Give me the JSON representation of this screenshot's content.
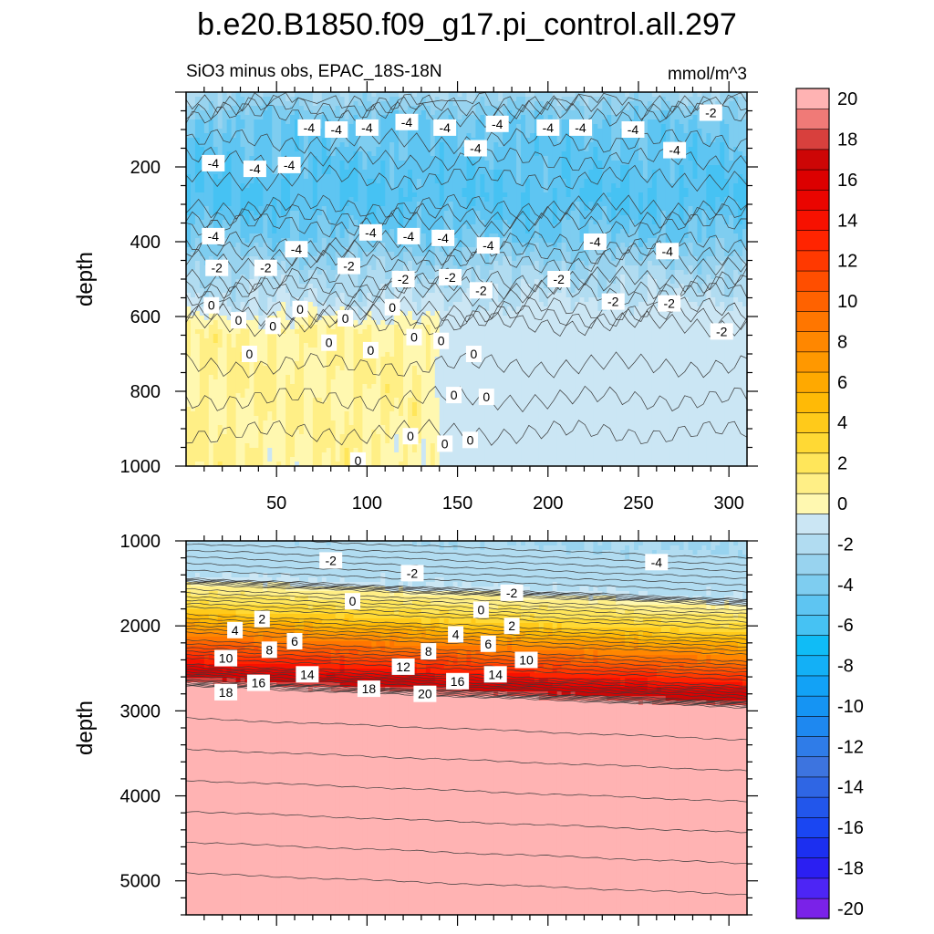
{
  "title": "b.e20.B1850.f09_g17.pi_control.all.297",
  "subtitle_left": "SiO3 minus obs, EPAC_18S-18N",
  "subtitle_right": "mmol/m^3",
  "chart_data": [
    {
      "type": "heatmap",
      "panel": "upper",
      "ylabel": "depth",
      "xlabel": "",
      "xlim": [
        0,
        310
      ],
      "ylim": [
        0,
        1000
      ],
      "y_reversed": true,
      "x_ticks": [
        50,
        100,
        150,
        200,
        250,
        300
      ],
      "y_ticks": [
        200,
        400,
        600,
        800,
        1000
      ],
      "bands": [
        {
          "depth": 0,
          "value": -2
        },
        {
          "depth": 80,
          "value": -4
        },
        {
          "depth": 280,
          "value": -5
        },
        {
          "depth": 380,
          "value": -4
        },
        {
          "depth": 480,
          "value": -2
        },
        {
          "depth": 560,
          "value": -1
        },
        {
          "depth": 640,
          "value": 1
        },
        {
          "depth": 1000,
          "value": 1
        }
      ],
      "contour_labels": [
        {
          "x": 15,
          "y": 190,
          "text": "-4"
        },
        {
          "x": 38,
          "y": 205,
          "text": "-4"
        },
        {
          "x": 57,
          "y": 195,
          "text": "-4"
        },
        {
          "x": 68,
          "y": 95,
          "text": "-4"
        },
        {
          "x": 83,
          "y": 100,
          "text": "-4"
        },
        {
          "x": 100,
          "y": 95,
          "text": "-4"
        },
        {
          "x": 122,
          "y": 80,
          "text": "-4"
        },
        {
          "x": 143,
          "y": 95,
          "text": "-4"
        },
        {
          "x": 172,
          "y": 85,
          "text": "-4"
        },
        {
          "x": 160,
          "y": 150,
          "text": "-4"
        },
        {
          "x": 200,
          "y": 95,
          "text": "-4"
        },
        {
          "x": 218,
          "y": 95,
          "text": "-4"
        },
        {
          "x": 247,
          "y": 100,
          "text": "-4"
        },
        {
          "x": 270,
          "y": 155,
          "text": "-4"
        },
        {
          "x": 290,
          "y": 55,
          "text": "-2"
        },
        {
          "x": 15,
          "y": 385,
          "text": "-4"
        },
        {
          "x": 102,
          "y": 375,
          "text": "-4"
        },
        {
          "x": 123,
          "y": 385,
          "text": "-4"
        },
        {
          "x": 142,
          "y": 390,
          "text": "-4"
        },
        {
          "x": 167,
          "y": 410,
          "text": "-4"
        },
        {
          "x": 226,
          "y": 400,
          "text": "-4"
        },
        {
          "x": 266,
          "y": 425,
          "text": "-4"
        },
        {
          "x": 61,
          "y": 420,
          "text": "-4"
        },
        {
          "x": 17,
          "y": 470,
          "text": "-2"
        },
        {
          "x": 44,
          "y": 470,
          "text": "-2"
        },
        {
          "x": 90,
          "y": 465,
          "text": "-2"
        },
        {
          "x": 120,
          "y": 500,
          "text": "-2"
        },
        {
          "x": 146,
          "y": 495,
          "text": "-2"
        },
        {
          "x": 163,
          "y": 530,
          "text": "-2"
        },
        {
          "x": 206,
          "y": 500,
          "text": "-2"
        },
        {
          "x": 236,
          "y": 560,
          "text": "-2"
        },
        {
          "x": 267,
          "y": 565,
          "text": "-2"
        },
        {
          "x": 296,
          "y": 640,
          "text": "-2"
        },
        {
          "x": 14,
          "y": 570,
          "text": "0"
        },
        {
          "x": 29,
          "y": 610,
          "text": "0"
        },
        {
          "x": 48,
          "y": 625,
          "text": "0"
        },
        {
          "x": 63,
          "y": 580,
          "text": "0"
        },
        {
          "x": 88,
          "y": 605,
          "text": "0"
        },
        {
          "x": 114,
          "y": 575,
          "text": "0"
        },
        {
          "x": 79,
          "y": 670,
          "text": "0"
        },
        {
          "x": 35,
          "y": 700,
          "text": "0"
        },
        {
          "x": 102,
          "y": 690,
          "text": "0"
        },
        {
          "x": 126,
          "y": 655,
          "text": "0"
        },
        {
          "x": 141,
          "y": 665,
          "text": "0"
        },
        {
          "x": 159,
          "y": 700,
          "text": "0"
        },
        {
          "x": 148,
          "y": 810,
          "text": "0"
        },
        {
          "x": 166,
          "y": 815,
          "text": "0"
        },
        {
          "x": 124,
          "y": 920,
          "text": "0"
        },
        {
          "x": 143,
          "y": 940,
          "text": "0"
        },
        {
          "x": 157,
          "y": 930,
          "text": "0"
        },
        {
          "x": 95,
          "y": 985,
          "text": "0"
        }
      ]
    },
    {
      "type": "heatmap",
      "panel": "lower",
      "ylabel": "depth",
      "xlabel": "",
      "xlim": [
        0,
        310
      ],
      "ylim": [
        1000,
        5400
      ],
      "y_reversed": true,
      "y_ticks": [
        1000,
        2000,
        3000,
        4000,
        5000
      ],
      "bands": [
        {
          "depth": 1000,
          "value": -2
        },
        {
          "depth": 1550,
          "value": -1
        },
        {
          "depth": 1650,
          "value": 1
        },
        {
          "depth": 1950,
          "value": 4
        },
        {
          "depth": 2250,
          "value": 9
        },
        {
          "depth": 2550,
          "value": 14
        },
        {
          "depth": 2750,
          "value": 18
        },
        {
          "depth": 2850,
          "value": 21
        },
        {
          "depth": 5400,
          "value": 21
        }
      ],
      "contour_labels": [
        {
          "x": 80,
          "y": 1230,
          "text": "-2"
        },
        {
          "x": 125,
          "y": 1380,
          "text": "-2"
        },
        {
          "x": 180,
          "y": 1610,
          "text": "-2"
        },
        {
          "x": 260,
          "y": 1250,
          "text": "-4"
        },
        {
          "x": 92,
          "y": 1710,
          "text": "0"
        },
        {
          "x": 163,
          "y": 1810,
          "text": "0"
        },
        {
          "x": 42,
          "y": 1920,
          "text": "2"
        },
        {
          "x": 180,
          "y": 2000,
          "text": "2"
        },
        {
          "x": 27,
          "y": 2050,
          "text": "4"
        },
        {
          "x": 149,
          "y": 2100,
          "text": "4"
        },
        {
          "x": 46,
          "y": 2280,
          "text": "8"
        },
        {
          "x": 60,
          "y": 2180,
          "text": "6"
        },
        {
          "x": 134,
          "y": 2300,
          "text": "8"
        },
        {
          "x": 167,
          "y": 2210,
          "text": "6"
        },
        {
          "x": 22,
          "y": 2380,
          "text": "10"
        },
        {
          "x": 188,
          "y": 2400,
          "text": "10"
        },
        {
          "x": 120,
          "y": 2480,
          "text": "12"
        },
        {
          "x": 67,
          "y": 2570,
          "text": "14"
        },
        {
          "x": 171,
          "y": 2570,
          "text": "14"
        },
        {
          "x": 40,
          "y": 2670,
          "text": "16"
        },
        {
          "x": 150,
          "y": 2650,
          "text": "16"
        },
        {
          "x": 22,
          "y": 2780,
          "text": "18"
        },
        {
          "x": 101,
          "y": 2740,
          "text": "18"
        },
        {
          "x": 132,
          "y": 2800,
          "text": "20"
        }
      ]
    }
  ],
  "colorbar": {
    "levels": [
      -20,
      -19,
      -18,
      -17,
      -16,
      -15,
      -14,
      -13,
      -12,
      -11,
      -10,
      -9,
      -8,
      -7,
      -6,
      -5,
      -4,
      -3,
      -2,
      -1,
      0,
      1,
      2,
      3,
      4,
      5,
      6,
      7,
      8,
      9,
      10,
      11,
      12,
      13,
      14,
      15,
      16,
      17,
      18,
      19,
      20
    ],
    "tick_labels": [
      "20",
      "18",
      "16",
      "14",
      "12",
      "10",
      "8",
      "6",
      "4",
      "2",
      "0",
      "-2",
      "-4",
      "-6",
      "-8",
      "-10",
      "-12",
      "-14",
      "-16",
      "-18",
      "-20"
    ],
    "colors": [
      "#7a22e8",
      "#4d25f5",
      "#2b1ff2",
      "#1c2ff0",
      "#1a46f2",
      "#2256eb",
      "#2f66e4",
      "#3d74df",
      "#2f7ce8",
      "#1e88f0",
      "#1594f3",
      "#12a2f6",
      "#13b0f6",
      "#10bcf6",
      "#46c2f3",
      "#5ec5f2",
      "#7ecdf0",
      "#98d3ef",
      "#b1dcf1",
      "#cbe6f4",
      "#fff8b0",
      "#ffef86",
      "#ffe65a",
      "#ffd934",
      "#ffca1a",
      "#ffba06",
      "#ffa900",
      "#ff9800",
      "#ff8700",
      "#ff7600",
      "#ff6200",
      "#ff4e00",
      "#ff3900",
      "#ff2400",
      "#f71100",
      "#ea0500",
      "#dc0000",
      "#cd0606",
      "#d8403d",
      "#f07a77",
      "#ffb3b3"
    ]
  }
}
